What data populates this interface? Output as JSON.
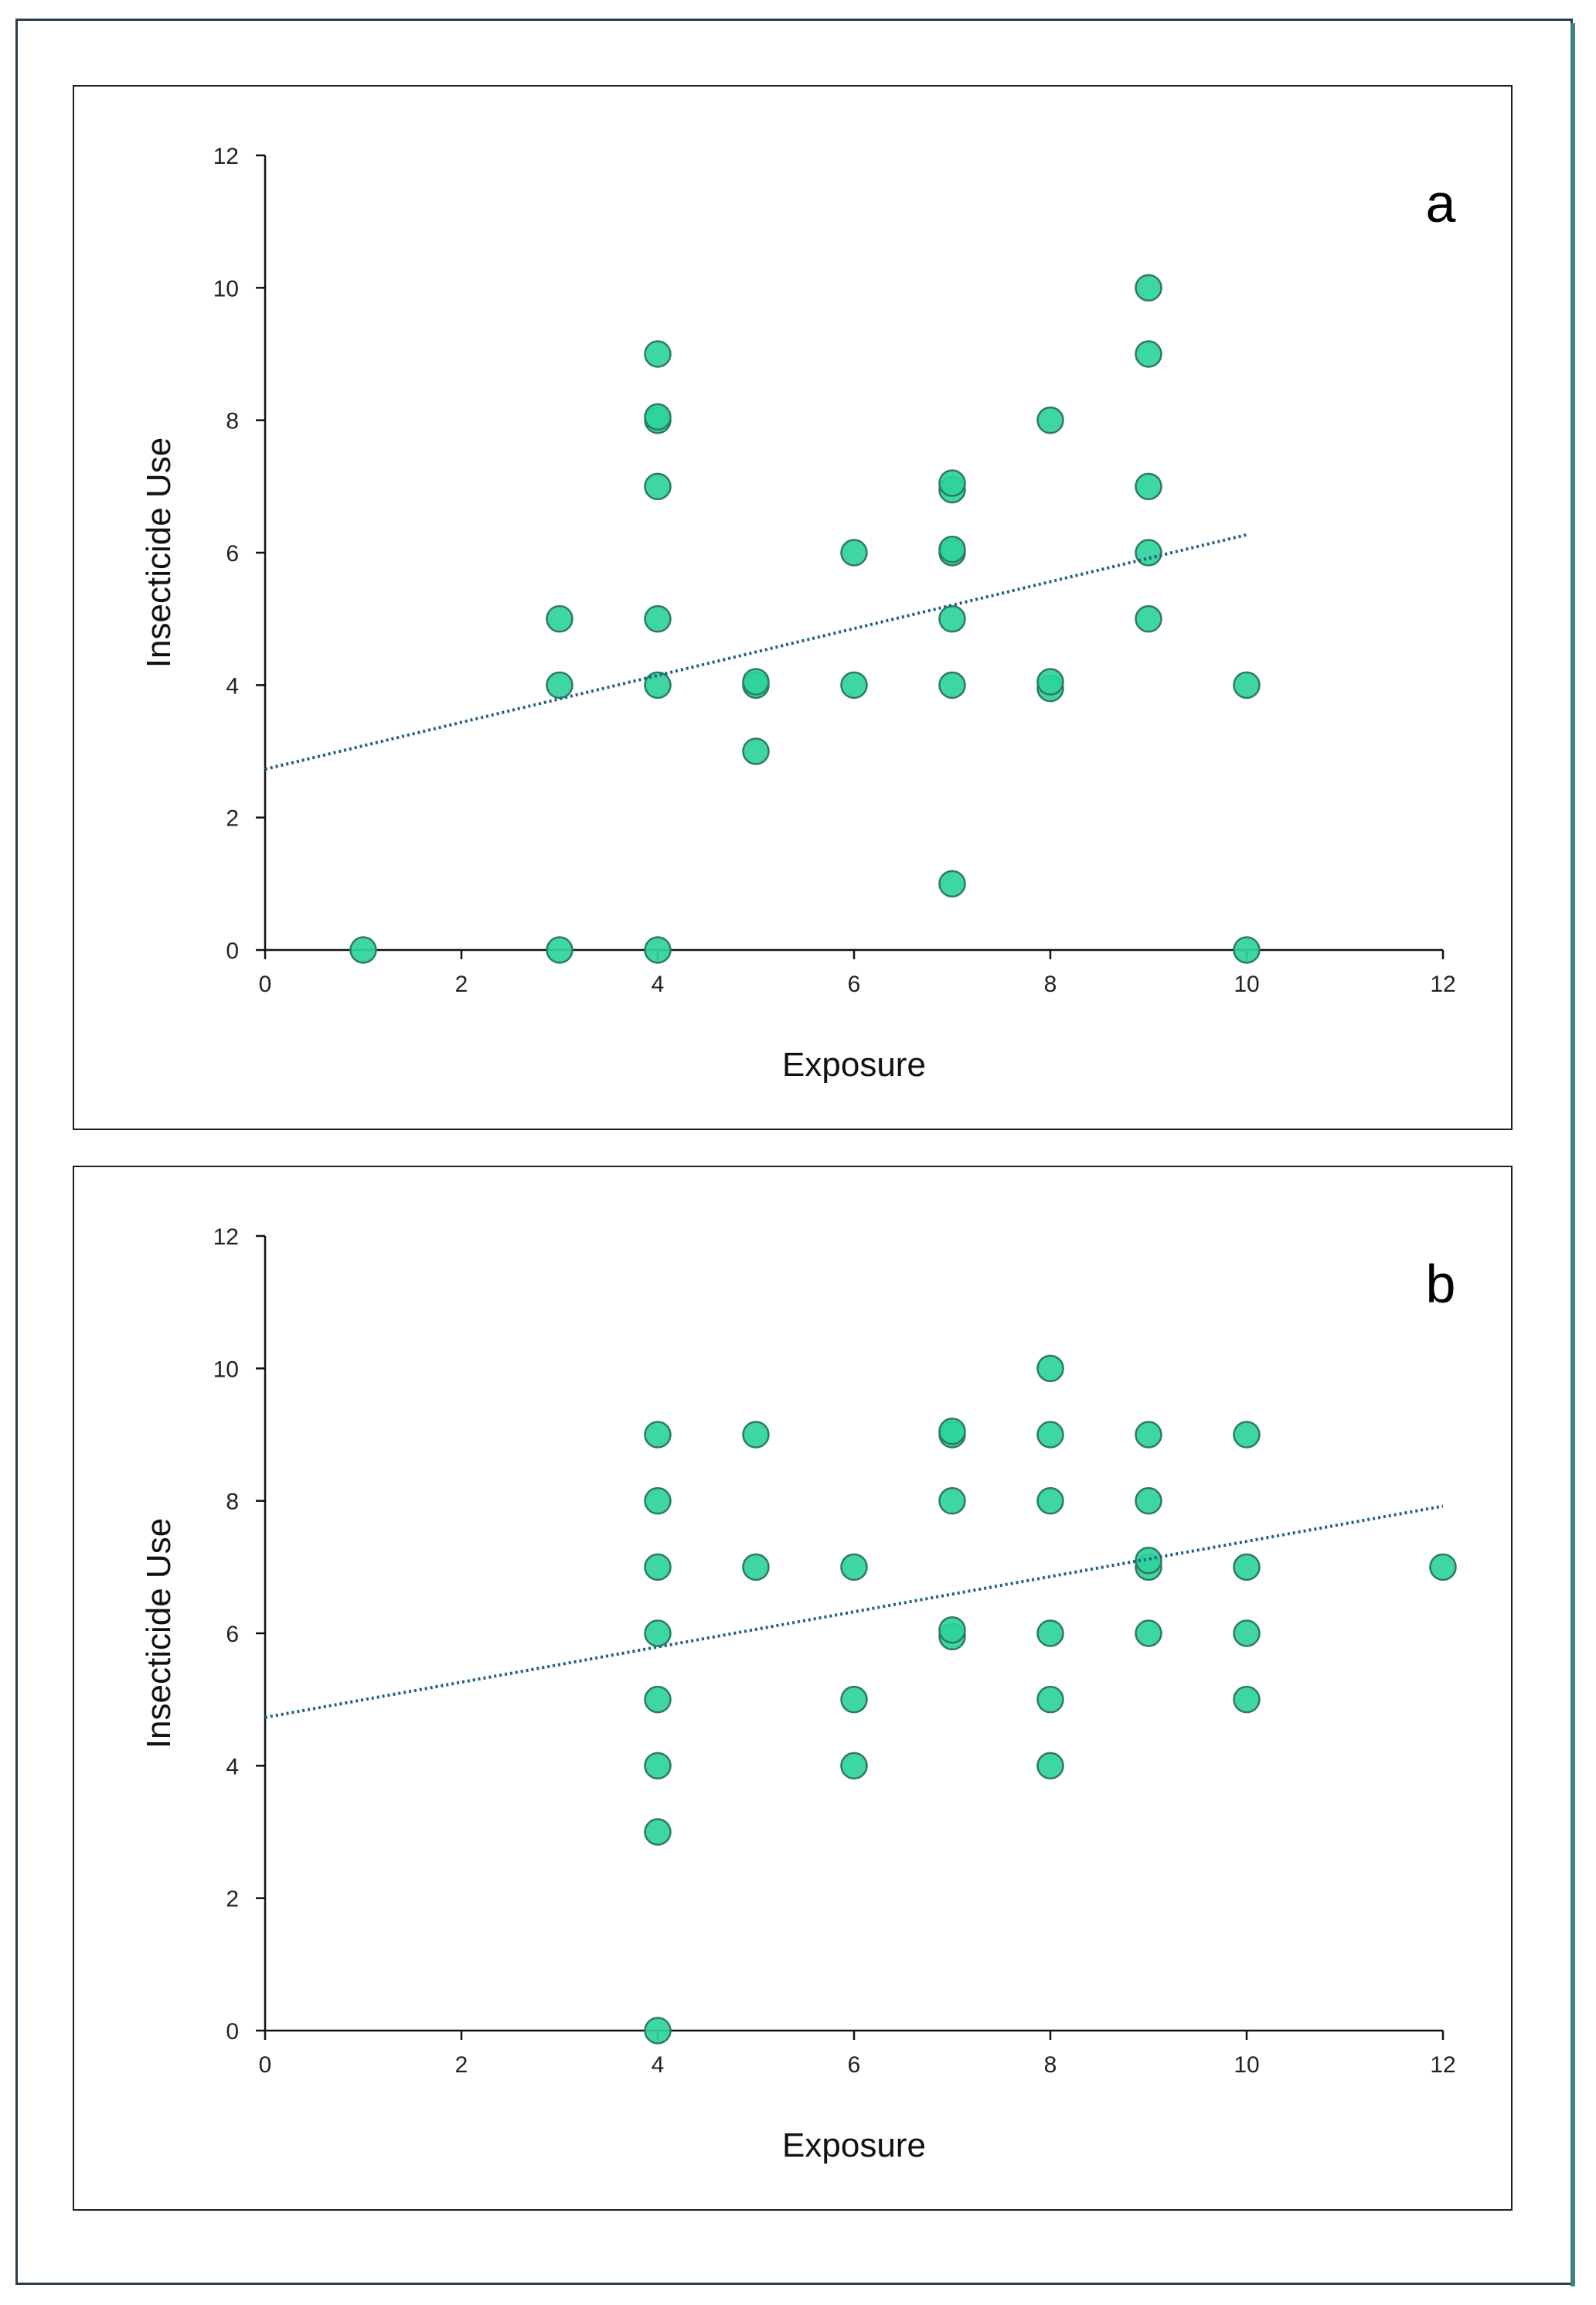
{
  "colors": {
    "marker_fill": "#2ed39b",
    "marker_stroke": "#2e7b5e",
    "trendline": "#1f5f82",
    "axis": "#111111"
  },
  "chart_data": [
    {
      "type": "scatter",
      "panel_label": "a",
      "xlabel": "Exposure",
      "ylabel": "Insecticide Use",
      "xlim": [
        0,
        12
      ],
      "ylim": [
        0,
        12
      ],
      "x_ticks": [
        "0",
        "2",
        "4",
        "6",
        "8",
        "10",
        "12"
      ],
      "y_ticks": [
        "0",
        "2",
        "4",
        "6",
        "8",
        "10",
        "12"
      ],
      "grid": false,
      "points": [
        [
          1,
          0
        ],
        [
          3,
          0
        ],
        [
          3,
          4
        ],
        [
          3,
          5
        ],
        [
          4,
          0
        ],
        [
          4,
          4
        ],
        [
          4,
          5
        ],
        [
          4,
          7
        ],
        [
          4,
          8
        ],
        [
          4,
          8.05
        ],
        [
          4,
          9
        ],
        [
          5,
          3
        ],
        [
          5,
          4
        ],
        [
          5,
          4.05
        ],
        [
          6,
          4
        ],
        [
          6,
          6
        ],
        [
          7,
          1
        ],
        [
          7,
          4
        ],
        [
          7,
          5
        ],
        [
          7,
          6
        ],
        [
          7,
          6.05
        ],
        [
          7,
          6.95
        ],
        [
          7,
          7.05
        ],
        [
          8,
          3.95
        ],
        [
          8,
          4.05
        ],
        [
          8,
          8
        ],
        [
          9,
          5
        ],
        [
          9,
          6
        ],
        [
          9,
          7
        ],
        [
          9,
          9
        ],
        [
          9,
          10
        ],
        [
          10,
          0
        ],
        [
          10,
          4
        ]
      ],
      "trendline": {
        "style": "dotted",
        "x_start": 0,
        "y_start": 2.73,
        "x_end": 10,
        "y_end": 6.27
      }
    },
    {
      "type": "scatter",
      "panel_label": "b",
      "xlabel": "Exposure",
      "ylabel": "Insecticide Use",
      "xlim": [
        0,
        12
      ],
      "ylim": [
        0,
        12
      ],
      "x_ticks": [
        "0",
        "2",
        "4",
        "6",
        "8",
        "10",
        "12"
      ],
      "y_ticks": [
        "0",
        "2",
        "4",
        "6",
        "8",
        "10",
        "12"
      ],
      "grid": false,
      "points": [
        [
          4,
          0
        ],
        [
          4,
          3
        ],
        [
          4,
          4
        ],
        [
          4,
          5
        ],
        [
          4,
          6
        ],
        [
          4,
          7
        ],
        [
          4,
          8
        ],
        [
          4,
          9
        ],
        [
          5,
          7
        ],
        [
          5,
          9
        ],
        [
          6,
          4
        ],
        [
          6,
          5
        ],
        [
          6,
          7
        ],
        [
          7,
          5.95
        ],
        [
          7,
          6.05
        ],
        [
          7,
          8
        ],
        [
          7,
          9
        ],
        [
          7,
          9.05
        ],
        [
          8,
          4
        ],
        [
          8,
          5
        ],
        [
          8,
          6
        ],
        [
          8,
          8
        ],
        [
          8,
          9
        ],
        [
          8,
          10
        ],
        [
          9,
          6
        ],
        [
          9,
          7
        ],
        [
          9,
          7.1
        ],
        [
          9,
          8
        ],
        [
          9,
          9
        ],
        [
          10,
          5
        ],
        [
          10,
          6
        ],
        [
          10,
          7
        ],
        [
          10,
          9
        ],
        [
          12,
          7
        ]
      ],
      "trendline": {
        "style": "dotted",
        "x_start": 0,
        "y_start": 4.73,
        "x_end": 12,
        "y_end": 7.92
      }
    }
  ]
}
